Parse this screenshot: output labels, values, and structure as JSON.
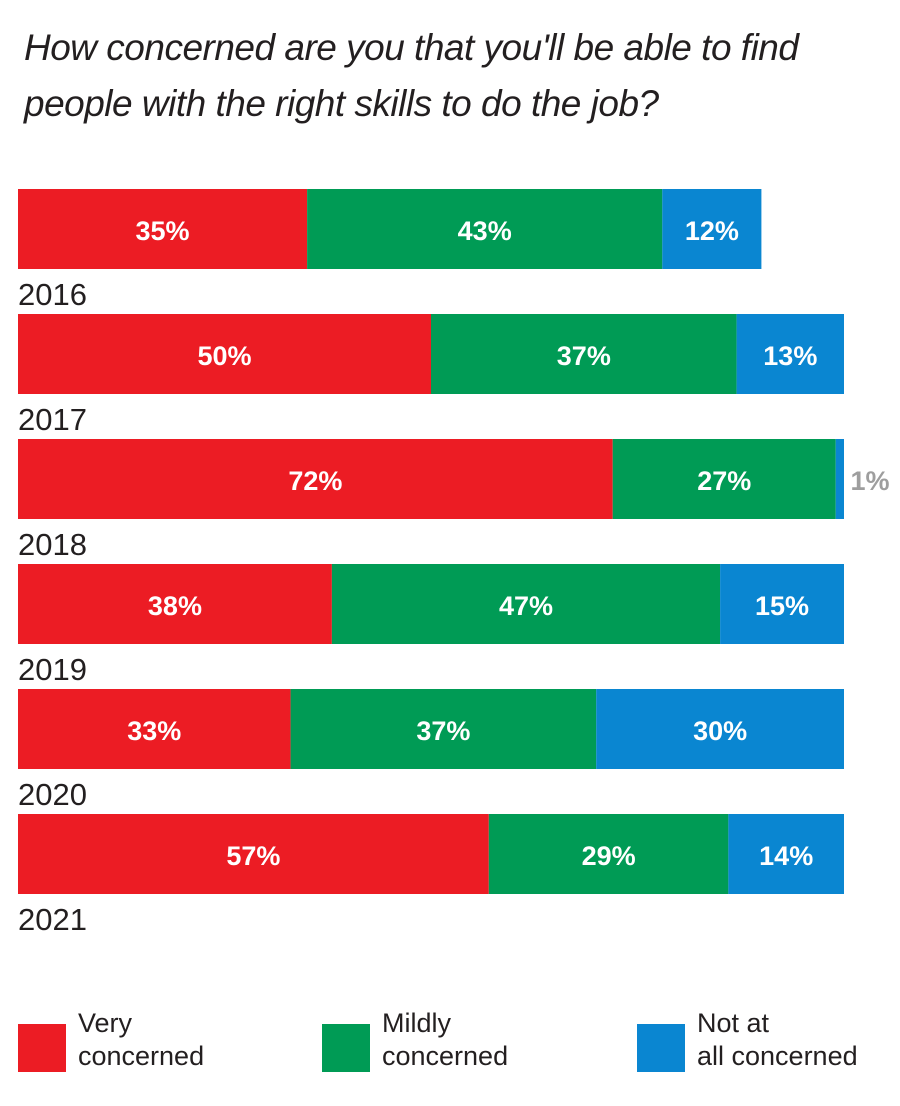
{
  "chart_data": {
    "type": "bar",
    "orientation": "horizontal",
    "stacked": true,
    "title": "How concerned are you that you'll be able to find people with the right skills to do the job?",
    "categories": [
      "2016",
      "2017",
      "2018",
      "2019",
      "2020",
      "2021"
    ],
    "series": [
      {
        "name": "Very concerned",
        "label_lines": [
          "Very",
          "concerned"
        ],
        "color": "#ec1c24",
        "values": [
          35,
          50,
          72,
          38,
          33,
          57
        ],
        "labels": [
          "35%",
          "50%",
          "72%",
          "38%",
          "33%",
          "57%"
        ]
      },
      {
        "name": "Mildly concerned",
        "label_lines": [
          "Mildly",
          "concerned"
        ],
        "color": "#009b55",
        "values": [
          43,
          37,
          27,
          47,
          37,
          29
        ],
        "labels": [
          "43%",
          "37%",
          "27%",
          "47%",
          "37%",
          "29%"
        ]
      },
      {
        "name": "Not at all concerned",
        "label_lines": [
          "Not at",
          "all concerned"
        ],
        "color": "#0a86d1",
        "values": [
          12,
          13,
          1,
          15,
          30,
          14
        ],
        "labels": [
          "12%",
          "13%",
          "1%",
          "15%",
          "30%",
          "14%"
        ]
      }
    ],
    "outside_label_color": "#9e9e9e",
    "xlim": [
      0,
      100
    ],
    "grid": false,
    "legend_position": "bottom"
  }
}
